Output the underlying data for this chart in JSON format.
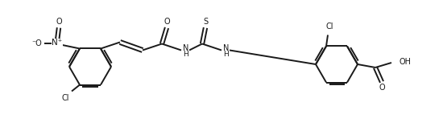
{
  "bg_color": "#ffffff",
  "line_color": "#1a1a1a",
  "line_width": 1.4,
  "text_color": "#1a1a1a",
  "font_size": 7.0,
  "fig_width": 5.5,
  "fig_height": 1.58,
  "dpi": 100,
  "xlim": [
    0,
    550
  ],
  "ylim": [
    0,
    158
  ]
}
